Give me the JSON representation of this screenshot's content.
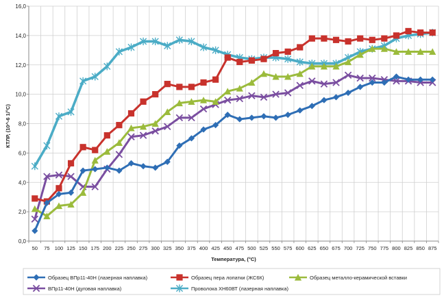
{
  "chart_data": {
    "type": "line",
    "xlabel": "Температура, (°C)",
    "ylabel": "КТЛР, (10^-6 1/°C)",
    "ylim": [
      0,
      16
    ],
    "ystep": 2,
    "ytick_labels": [
      "0,0",
      "2,0",
      "4,0",
      "6,0",
      "8,0",
      "10,0",
      "12,0",
      "14,0",
      "16,0"
    ],
    "categories": [
      "50",
      "75",
      "100",
      "125",
      "150",
      "175",
      "200",
      "225",
      "250",
      "275",
      "300",
      "325",
      "350",
      "375",
      "400",
      "425",
      "450",
      "475",
      "500",
      "525",
      "550",
      "575",
      "600",
      "625",
      "650",
      "675",
      "700",
      "725",
      "750",
      "775",
      "800",
      "825",
      "850",
      "875"
    ],
    "grid": true,
    "legend_position": "bottom",
    "series": [
      {
        "name": "Образец ВПр11-40Н (лазерная наплавка)",
        "color": "#2e6eb5",
        "marker": "diamond",
        "values": [
          0.7,
          2.6,
          3.2,
          3.3,
          4.8,
          4.9,
          5.0,
          4.8,
          5.3,
          5.1,
          5.0,
          5.4,
          6.5,
          7.0,
          7.6,
          7.9,
          8.6,
          8.3,
          8.4,
          8.5,
          8.4,
          8.6,
          8.9,
          9.2,
          9.6,
          9.8,
          10.1,
          10.5,
          10.8,
          10.8,
          11.2,
          11.0,
          11.0,
          11.0
        ]
      },
      {
        "name": "Образец пера лопатки (ЖС6К)",
        "color": "#c8322c",
        "marker": "square",
        "values": [
          2.9,
          2.7,
          3.6,
          5.3,
          6.4,
          6.2,
          7.2,
          7.9,
          8.7,
          9.5,
          10.0,
          10.7,
          10.5,
          10.5,
          10.8,
          11.0,
          12.5,
          12.2,
          12.3,
          12.4,
          12.8,
          12.9,
          13.2,
          13.8,
          13.8,
          13.7,
          13.6,
          13.8,
          13.7,
          13.8,
          14.0,
          14.3,
          14.2,
          14.2
        ]
      },
      {
        "name": "Образец металло-керамической вставки",
        "color": "#9bbb3c",
        "marker": "triangle",
        "values": [
          2.2,
          1.7,
          2.4,
          2.5,
          3.3,
          5.5,
          6.1,
          6.7,
          7.7,
          7.8,
          8.0,
          8.8,
          9.4,
          9.5,
          9.6,
          9.5,
          10.2,
          10.4,
          10.8,
          11.4,
          11.2,
          11.2,
          11.4,
          11.9,
          11.9,
          11.9,
          12.2,
          12.7,
          13.1,
          13.1,
          12.9,
          12.9,
          12.9,
          12.9
        ]
      },
      {
        "name": "ВПр11-40Н (дуговая наплавка)",
        "color": "#7a4ea0",
        "marker": "x",
        "values": [
          1.5,
          4.4,
          4.5,
          4.4,
          3.7,
          3.7,
          4.9,
          5.9,
          7.1,
          7.2,
          7.5,
          7.8,
          8.4,
          8.4,
          9.0,
          9.3,
          9.6,
          9.7,
          9.9,
          9.8,
          10.0,
          10.1,
          10.6,
          10.9,
          10.7,
          10.8,
          11.3,
          11.1,
          11.1,
          11.0,
          10.9,
          10.9,
          10.8,
          10.8
        ]
      },
      {
        "name": "Проволока ХН60ВТ (лазерная наплавка)",
        "color": "#4bacc6",
        "marker": "star",
        "values": [
          5.1,
          6.5,
          8.5,
          8.8,
          10.9,
          11.2,
          11.9,
          12.9,
          13.2,
          13.6,
          13.6,
          13.3,
          13.7,
          13.6,
          13.2,
          13.0,
          12.7,
          12.5,
          12.4,
          12.5,
          12.5,
          12.4,
          12.2,
          12.1,
          12.1,
          12.1,
          12.5,
          12.9,
          13.1,
          13.3,
          13.8,
          14.0,
          14.1,
          14.2
        ]
      }
    ]
  }
}
